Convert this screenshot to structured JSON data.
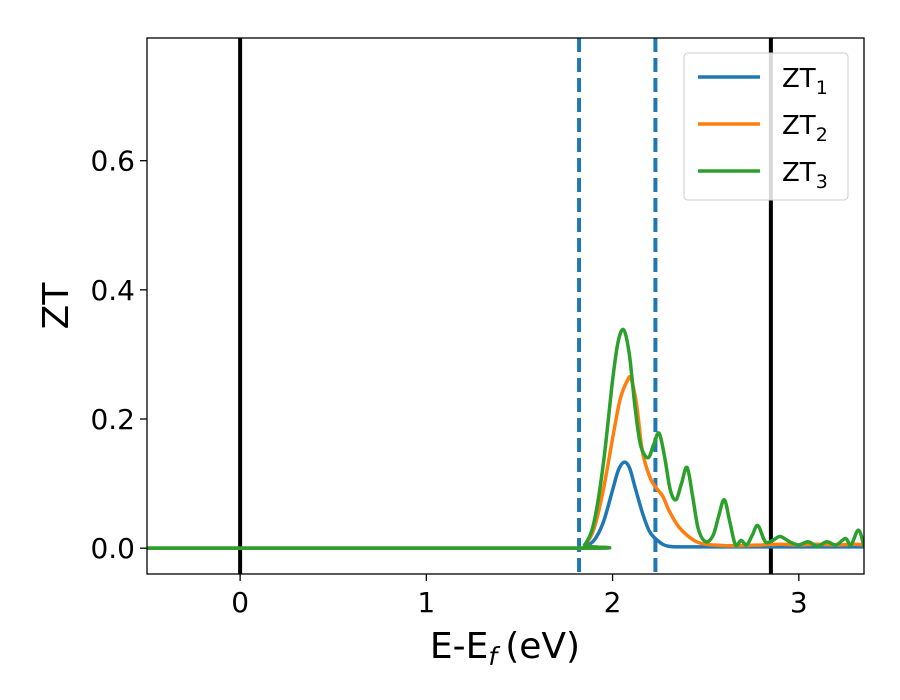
{
  "chart_data": {
    "type": "line",
    "xlabel": "E-E",
    "xlabel_sub": "f",
    "xlabel_unit": "(eV)",
    "ylabel": "ZT",
    "xlim": [
      -0.5,
      3.35
    ],
    "ylim": [
      -0.04,
      0.79
    ],
    "xticks": [
      0,
      1,
      2,
      3
    ],
    "xtick_labels": [
      "0",
      "1",
      "2",
      "3"
    ],
    "yticks": [
      0.0,
      0.2,
      0.4,
      0.6
    ],
    "ytick_labels": [
      "0.0",
      "0.2",
      "0.4",
      "0.6"
    ],
    "grid": false,
    "legend_position": "top-right",
    "vertical_lines": [
      {
        "x": 0.0,
        "style": "solid",
        "color": "#000000"
      },
      {
        "x": 2.85,
        "style": "solid",
        "color": "#000000"
      },
      {
        "x": 1.82,
        "style": "dashed",
        "color": "#1f77b4"
      },
      {
        "x": 2.23,
        "style": "dashed",
        "color": "#1f77b4"
      }
    ],
    "series": [
      {
        "name": "ZT",
        "name_sub": "1",
        "color": "#1f77b4",
        "x": [
          -0.5,
          1.8,
          1.85,
          1.9,
          1.95,
          2.0,
          2.03,
          2.06,
          2.09,
          2.12,
          2.16,
          2.2,
          2.25,
          2.3,
          2.4,
          2.5,
          2.6,
          2.8,
          3.0,
          3.2,
          3.35
        ],
        "y": [
          0.0,
          0.0,
          0.003,
          0.012,
          0.04,
          0.09,
          0.12,
          0.133,
          0.125,
          0.095,
          0.055,
          0.025,
          0.01,
          0.003,
          0.002,
          0.002,
          0.002,
          0.002,
          0.002,
          0.002,
          0.002
        ]
      },
      {
        "name": "ZT",
        "name_sub": "2",
        "color": "#ff7f0e",
        "x": [
          -0.5,
          1.8,
          1.85,
          1.9,
          1.95,
          2.0,
          2.04,
          2.08,
          2.1,
          2.13,
          2.16,
          2.2,
          2.23,
          2.27,
          2.3,
          2.35,
          2.4,
          2.45,
          2.5,
          2.6,
          2.7,
          2.8,
          2.9,
          3.0,
          3.1,
          3.2,
          3.3,
          3.35
        ],
        "y": [
          0.0,
          0.0,
          0.005,
          0.03,
          0.09,
          0.17,
          0.23,
          0.26,
          0.262,
          0.22,
          0.15,
          0.11,
          0.095,
          0.08,
          0.06,
          0.035,
          0.02,
          0.01,
          0.006,
          0.004,
          0.004,
          0.005,
          0.006,
          0.005,
          0.006,
          0.005,
          0.006,
          0.005
        ]
      },
      {
        "name": "ZT",
        "name_sub": "3",
        "color": "#2ca02c",
        "x": [
          -0.5,
          1.8,
          1.85,
          1.9,
          1.95,
          2.0,
          2.03,
          2.06,
          2.09,
          2.12,
          2.15,
          2.19,
          2.22,
          2.25,
          2.28,
          2.31,
          2.34,
          2.37,
          2.4,
          2.43,
          2.46,
          2.5,
          2.54,
          2.57,
          2.6,
          2.63,
          2.66,
          2.69,
          2.72,
          2.75,
          2.78,
          2.82,
          2.86,
          2.9,
          2.95,
          3.0,
          3.05,
          3.1,
          3.15,
          3.2,
          3.25,
          3.28,
          3.32,
          3.35
        ],
        "y": [
          0.0,
          0.0,
          0.005,
          0.04,
          0.13,
          0.26,
          0.32,
          0.338,
          0.3,
          0.22,
          0.16,
          0.14,
          0.16,
          0.178,
          0.14,
          0.09,
          0.075,
          0.1,
          0.125,
          0.08,
          0.03,
          0.01,
          0.02,
          0.05,
          0.075,
          0.04,
          0.005,
          0.012,
          0.005,
          0.02,
          0.035,
          0.01,
          0.012,
          0.018,
          0.01,
          0.005,
          0.01,
          0.003,
          0.01,
          0.005,
          0.015,
          0.005,
          0.028,
          0.003
        ]
      }
    ]
  }
}
